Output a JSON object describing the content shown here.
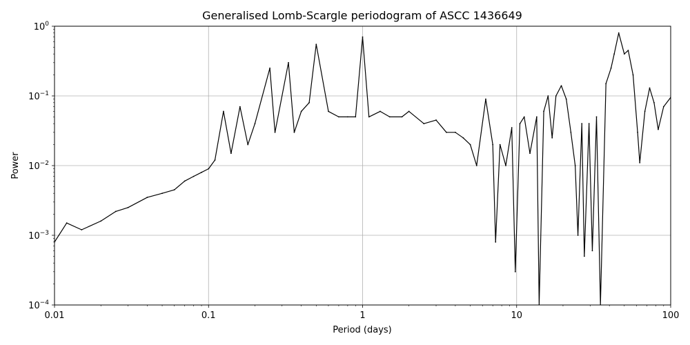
{
  "chart_data": {
    "type": "line",
    "title": "Generalised Lomb-Scargle periodogram of ASCC 1436649",
    "xlabel": "Period (days)",
    "ylabel": "Power",
    "x_scale": "log",
    "y_scale": "log",
    "xlim": [
      0.01,
      100
    ],
    "ylim": [
      0.0001,
      1
    ],
    "x_ticks": [
      {
        "value": 0.01,
        "label": "0.01"
      },
      {
        "value": 0.1,
        "label": "0.1"
      },
      {
        "value": 1,
        "label": "1"
      },
      {
        "value": 10,
        "label": "10"
      },
      {
        "value": 100,
        "label": "100"
      }
    ],
    "y_ticks": [
      {
        "value": 0.0001,
        "base": "10",
        "exp": "−4"
      },
      {
        "value": 0.001,
        "base": "10",
        "exp": "−3"
      },
      {
        "value": 0.01,
        "base": "10",
        "exp": "−2"
      },
      {
        "value": 0.1,
        "base": "10",
        "exp": "−1"
      },
      {
        "value": 1,
        "base": "10",
        "exp": "0"
      }
    ],
    "grid": true,
    "line_color": "#000000",
    "grid_color": "#b0b0b0",
    "series": [
      {
        "values": [
          [
            0.01,
            0.0008
          ],
          [
            0.012,
            0.0015
          ],
          [
            0.015,
            0.0012
          ],
          [
            0.02,
            0.0016
          ],
          [
            0.025,
            0.0022
          ],
          [
            0.03,
            0.0025
          ],
          [
            0.04,
            0.0035
          ],
          [
            0.05,
            0.004
          ],
          [
            0.06,
            0.0045
          ],
          [
            0.07,
            0.006
          ],
          [
            0.08,
            0.007
          ],
          [
            0.09,
            0.008
          ],
          [
            0.1,
            0.009
          ],
          [
            0.11,
            0.012
          ],
          [
            0.125,
            0.06
          ],
          [
            0.14,
            0.015
          ],
          [
            0.16,
            0.07
          ],
          [
            0.18,
            0.02
          ],
          [
            0.2,
            0.04
          ],
          [
            0.25,
            0.25
          ],
          [
            0.27,
            0.03
          ],
          [
            0.33,
            0.3
          ],
          [
            0.36,
            0.03
          ],
          [
            0.4,
            0.06
          ],
          [
            0.45,
            0.08
          ],
          [
            0.5,
            0.55
          ],
          [
            0.6,
            0.06
          ],
          [
            0.7,
            0.05
          ],
          [
            0.8,
            0.05
          ],
          [
            0.9,
            0.05
          ],
          [
            1.0,
            0.7
          ],
          [
            1.1,
            0.05
          ],
          [
            1.3,
            0.06
          ],
          [
            1.5,
            0.05
          ],
          [
            1.8,
            0.05
          ],
          [
            2.0,
            0.06
          ],
          [
            2.5,
            0.04
          ],
          [
            3.0,
            0.045
          ],
          [
            3.5,
            0.03
          ],
          [
            4.0,
            0.03
          ],
          [
            4.5,
            0.025
          ],
          [
            5.0,
            0.02
          ],
          [
            5.5,
            0.01
          ],
          [
            6.3,
            0.09
          ],
          [
            7.0,
            0.02
          ],
          [
            7.3,
            0.0008
          ],
          [
            7.8,
            0.02
          ],
          [
            8.5,
            0.01
          ],
          [
            9.3,
            0.035
          ],
          [
            9.8,
            0.0003
          ],
          [
            10.5,
            0.04
          ],
          [
            11.2,
            0.05
          ],
          [
            12.2,
            0.015
          ],
          [
            13.5,
            0.05
          ],
          [
            14.0,
            0.0001
          ],
          [
            15.0,
            0.06
          ],
          [
            16.0,
            0.1
          ],
          [
            17.0,
            0.025
          ],
          [
            18.0,
            0.1
          ],
          [
            19.5,
            0.14
          ],
          [
            21.0,
            0.09
          ],
          [
            22.5,
            0.03
          ],
          [
            24.0,
            0.01
          ],
          [
            25.0,
            0.001
          ],
          [
            26.5,
            0.04
          ],
          [
            27.5,
            0.0005
          ],
          [
            29.5,
            0.04
          ],
          [
            31.0,
            0.0006
          ],
          [
            33.0,
            0.05
          ],
          [
            35.0,
            0.0001
          ],
          [
            38.0,
            0.15
          ],
          [
            41.0,
            0.25
          ],
          [
            43.0,
            0.4
          ],
          [
            46.0,
            0.8
          ],
          [
            50.0,
            0.4
          ],
          [
            53.0,
            0.45
          ],
          [
            57.0,
            0.2
          ],
          [
            61.0,
            0.03
          ],
          [
            63.0,
            0.011
          ],
          [
            68.0,
            0.06
          ],
          [
            73.0,
            0.13
          ],
          [
            78.0,
            0.08
          ],
          [
            83.0,
            0.033
          ],
          [
            90.0,
            0.07
          ],
          [
            100.0,
            0.095
          ]
        ]
      }
    ]
  }
}
